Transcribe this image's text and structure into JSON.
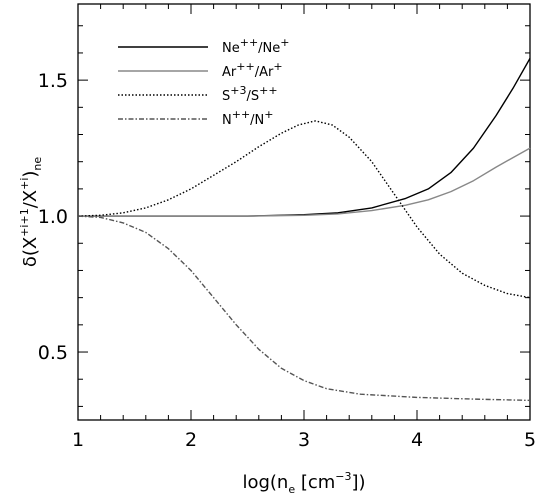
{
  "chart_data": {
    "type": "line",
    "title": "",
    "xlabel": {
      "main": "log(n",
      "sub": "e",
      "units_pre": " [cm",
      "units_sup": "−3",
      "units_post": "])"
    },
    "ylabel": {
      "delta": "δ(X",
      "sup1": "+i+1",
      "slash": "/X",
      "sup2": "+i",
      "close": ")",
      "sub": "ne"
    },
    "xlim": [
      1,
      5
    ],
    "ylim": [
      0.25,
      1.78
    ],
    "x_ticks": [
      "1",
      "2",
      "3",
      "4",
      "5"
    ],
    "y_ticks": [
      "0.5",
      "1.0",
      "1.5"
    ],
    "grid": false,
    "legend_position": "top-left",
    "series": [
      {
        "name": {
          "a": "Ne",
          "a_sup": "++",
          "b": "/Ne",
          "b_sup": "+"
        },
        "color": "#000000",
        "dash": "solid",
        "points": [
          [
            1.0,
            1.0
          ],
          [
            1.5,
            1.0
          ],
          [
            2.0,
            1.0
          ],
          [
            2.5,
            1.0
          ],
          [
            3.0,
            1.005
          ],
          [
            3.3,
            1.012
          ],
          [
            3.6,
            1.03
          ],
          [
            3.9,
            1.065
          ],
          [
            4.1,
            1.1
          ],
          [
            4.3,
            1.16
          ],
          [
            4.5,
            1.25
          ],
          [
            4.7,
            1.37
          ],
          [
            4.85,
            1.47
          ],
          [
            5.0,
            1.58
          ]
        ]
      },
      {
        "name": {
          "a": "Ar",
          "a_sup": "++",
          "b": "/Ar",
          "b_sup": "+"
        },
        "color": "#888888",
        "dash": "solid",
        "points": [
          [
            1.0,
            1.0
          ],
          [
            1.5,
            1.0
          ],
          [
            2.0,
            1.0
          ],
          [
            2.5,
            1.0
          ],
          [
            3.0,
            1.003
          ],
          [
            3.3,
            1.008
          ],
          [
            3.6,
            1.02
          ],
          [
            3.9,
            1.04
          ],
          [
            4.1,
            1.06
          ],
          [
            4.3,
            1.09
          ],
          [
            4.5,
            1.13
          ],
          [
            4.7,
            1.18
          ],
          [
            4.85,
            1.215
          ],
          [
            5.0,
            1.25
          ]
        ]
      },
      {
        "name": {
          "a": "S",
          "a_sup": "+3",
          "b": "/S",
          "b_sup": "++"
        },
        "color": "#000000",
        "dash": "dotted",
        "points": [
          [
            1.0,
            1.0
          ],
          [
            1.2,
            1.003
          ],
          [
            1.4,
            1.012
          ],
          [
            1.6,
            1.03
          ],
          [
            1.8,
            1.06
          ],
          [
            2.0,
            1.1
          ],
          [
            2.2,
            1.15
          ],
          [
            2.4,
            1.2
          ],
          [
            2.6,
            1.255
          ],
          [
            2.8,
            1.305
          ],
          [
            2.95,
            1.335
          ],
          [
            3.1,
            1.35
          ],
          [
            3.25,
            1.335
          ],
          [
            3.4,
            1.29
          ],
          [
            3.6,
            1.2
          ],
          [
            3.8,
            1.08
          ],
          [
            4.0,
            0.96
          ],
          [
            4.2,
            0.86
          ],
          [
            4.4,
            0.79
          ],
          [
            4.6,
            0.745
          ],
          [
            4.8,
            0.715
          ],
          [
            5.0,
            0.7
          ]
        ]
      },
      {
        "name": {
          "a": "N",
          "a_sup": "++",
          "b": "/N",
          "b_sup": "+"
        },
        "color": "#555555",
        "dash": "dashdot",
        "points": [
          [
            1.0,
            1.0
          ],
          [
            1.2,
            0.995
          ],
          [
            1.4,
            0.975
          ],
          [
            1.6,
            0.94
          ],
          [
            1.8,
            0.88
          ],
          [
            2.0,
            0.8
          ],
          [
            2.2,
            0.7
          ],
          [
            2.4,
            0.6
          ],
          [
            2.6,
            0.51
          ],
          [
            2.8,
            0.44
          ],
          [
            3.0,
            0.395
          ],
          [
            3.2,
            0.365
          ],
          [
            3.5,
            0.345
          ],
          [
            4.0,
            0.333
          ],
          [
            4.5,
            0.327
          ],
          [
            5.0,
            0.322
          ]
        ]
      }
    ]
  }
}
